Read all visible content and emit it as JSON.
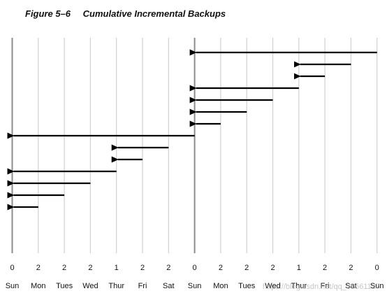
{
  "figure": {
    "number": "Figure 5–6",
    "title": "Cumulative Incremental Backups"
  },
  "timeline": {
    "days": [
      {
        "level": "0",
        "day": "Sun"
      },
      {
        "level": "2",
        "day": "Mon"
      },
      {
        "level": "2",
        "day": "Tues"
      },
      {
        "level": "2",
        "day": "Wed"
      },
      {
        "level": "1",
        "day": "Thur"
      },
      {
        "level": "2",
        "day": "Fri"
      },
      {
        "level": "2",
        "day": "Sat"
      },
      {
        "level": "0",
        "day": "Sun"
      },
      {
        "level": "2",
        "day": "Mon"
      },
      {
        "level": "2",
        "day": "Tues"
      },
      {
        "level": "2",
        "day": "Wed"
      },
      {
        "level": "1",
        "day": "Thur"
      },
      {
        "level": "2",
        "day": "Fri"
      },
      {
        "level": "2",
        "day": "Sat"
      },
      {
        "level": "0",
        "day": "Sun"
      }
    ],
    "level0_line_days": [
      0,
      7
    ]
  },
  "backups": [
    {
      "from_day": 14,
      "to_day": 7
    },
    {
      "from_day": 13,
      "to_day": 11
    },
    {
      "from_day": 12,
      "to_day": 11
    },
    {
      "from_day": 11,
      "to_day": 7
    },
    {
      "from_day": 10,
      "to_day": 7
    },
    {
      "from_day": 9,
      "to_day": 7
    },
    {
      "from_day": 8,
      "to_day": 7
    },
    {
      "from_day": 7,
      "to_day": 0
    },
    {
      "from_day": 6,
      "to_day": 4
    },
    {
      "from_day": 5,
      "to_day": 4
    },
    {
      "from_day": 4,
      "to_day": 0
    },
    {
      "from_day": 3,
      "to_day": 0
    },
    {
      "from_day": 2,
      "to_day": 0
    },
    {
      "from_day": 1,
      "to_day": 0
    }
  ],
  "watermark": "https://blog.csdn.net/qq_35561127",
  "colors": {
    "grid": "#d0d0d0",
    "level0_line": "#8c8c8c",
    "arrow": "#000000",
    "text": "#111111"
  }
}
